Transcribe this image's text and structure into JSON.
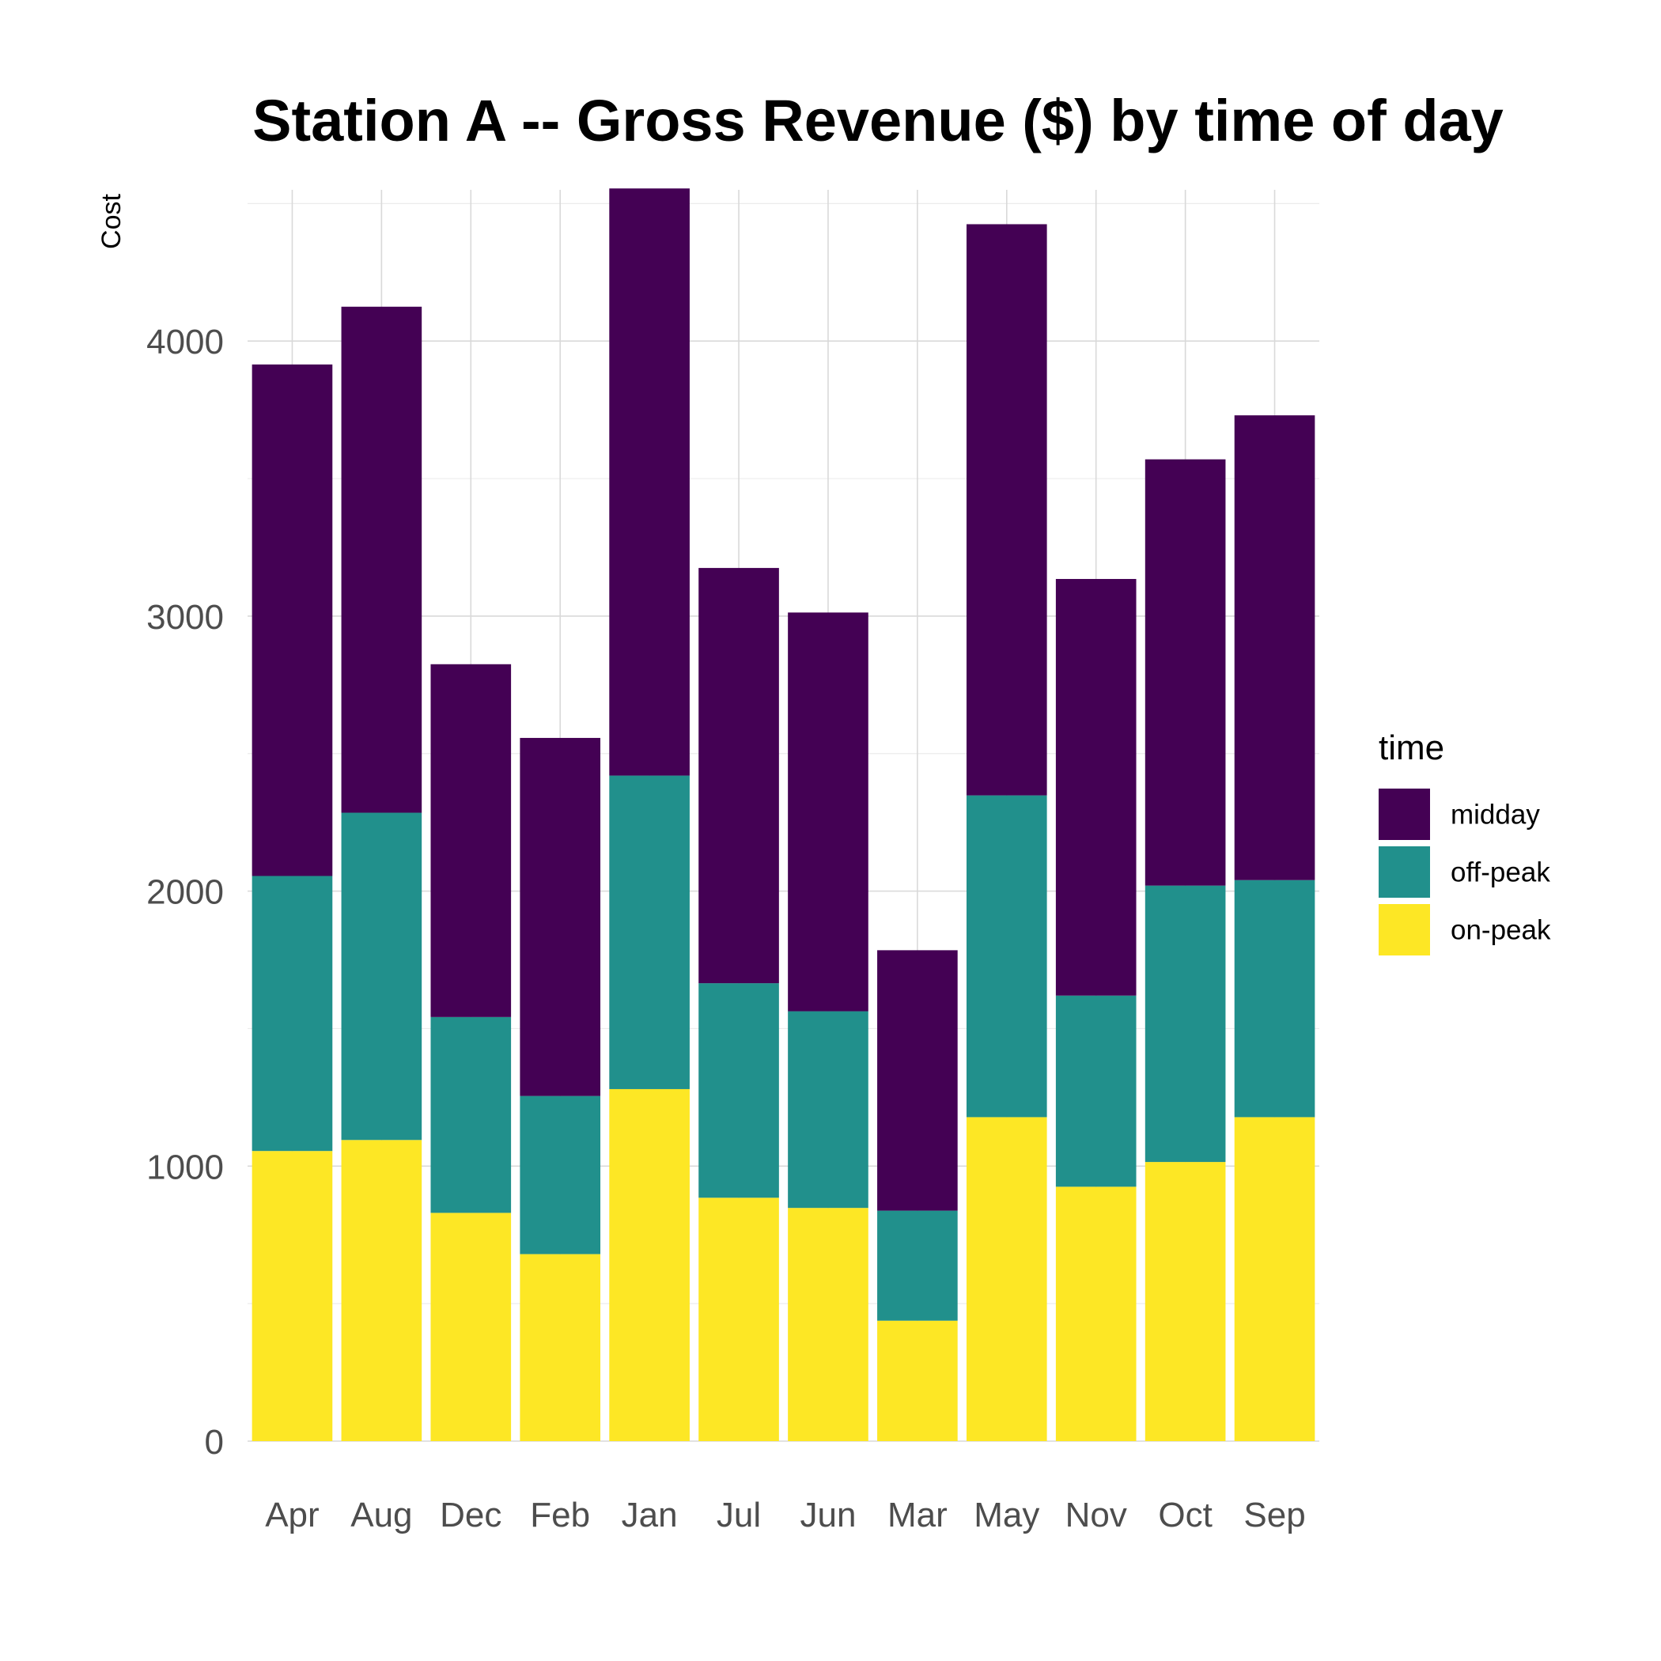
{
  "chart_data": {
    "type": "bar",
    "stacked": true,
    "title": "Station A -- Gross Revenue ($) by time of day",
    "xlabel": "",
    "ylabel": "Cost",
    "categories": [
      "Apr",
      "Aug",
      "Dec",
      "Feb",
      "Jan",
      "Jul",
      "Jun",
      "Mar",
      "May",
      "Nov",
      "Oct",
      "Sep"
    ],
    "series": [
      {
        "name": "on-peak",
        "color": "#FDE725",
        "values": [
          1055,
          1095,
          830,
          680,
          1280,
          885,
          848,
          438,
          1178,
          925,
          1015,
          1178
        ]
      },
      {
        "name": "off-peak",
        "color": "#21908C",
        "values": [
          1000,
          1190,
          712,
          575,
          1140,
          780,
          715,
          400,
          1170,
          695,
          1005,
          862
        ]
      },
      {
        "name": "midday",
        "color": "#440154",
        "values": [
          1860,
          1840,
          1283,
          1302,
          2135,
          1510,
          1450,
          947,
          2077,
          1515,
          1550,
          1690
        ]
      }
    ],
    "ylim": [
      0,
      4550
    ],
    "yticks": [
      0,
      1000,
      2000,
      3000,
      4000
    ],
    "grid": true,
    "legend": {
      "title": "time",
      "position": "right",
      "order": [
        "midday",
        "off-peak",
        "on-peak"
      ]
    }
  }
}
